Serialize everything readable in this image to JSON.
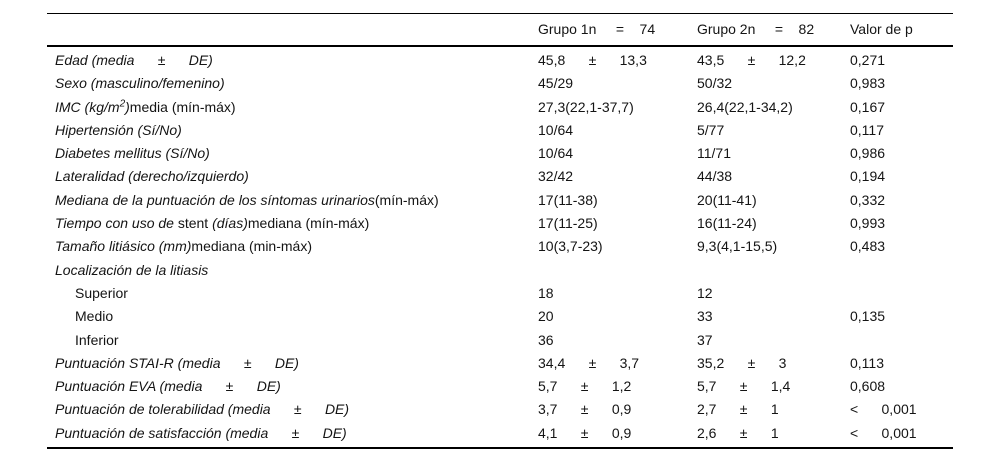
{
  "table": {
    "header": {
      "variable": "",
      "group1": "Grupo 1n     =    74",
      "group2": "Grupo 2n     =    82",
      "p": "Valor de p"
    },
    "rows": [
      {
        "s1": "Edad (media      ±      DE)",
        "g1": "45,8      ±      13,3",
        "g2": "43,5      ±      12,2",
        "p": "0,271"
      },
      {
        "s1": "Sexo (masculino/femenino)",
        "g1": "45/29",
        "g2": "50/32",
        "p": "0,983"
      },
      {
        "s1": "IMC (kg/m",
        "sup": "2",
        "s3": ")",
        "s4": "media (mín-máx)",
        "g1": "27,3(22,1-37,7)",
        "g2": "26,4(22,1-34,2)",
        "p": "0,167"
      },
      {
        "s1": "Hipertensión (Sí/No)",
        "g1": "10/64",
        "g2": "5/77",
        "p": "0,117"
      },
      {
        "s1": "Diabetes mellitus (Sí/No)",
        "g1": "10/64",
        "g2": "11/71",
        "p": "0,986"
      },
      {
        "s1": "Lateralidad (derecho/izquierdo)",
        "g1": "32/42",
        "g2": "44/38",
        "p": "0,194"
      },
      {
        "s1": "Mediana de la puntuación de los síntomas urinarios",
        "s2": "(mín-máx)",
        "g1": "17(11-38)",
        "g2": "20(11-41)",
        "p": "0,332"
      },
      {
        "s1": "Tiempo con uso de ",
        "s2": "stent ",
        "s3": "(días)",
        "s4": "mediana (mín-máx)",
        "g1": "17(11-25)",
        "g2": "16(11-24)",
        "p": "0,993"
      },
      {
        "s1": "Tamaño litiásico (mm)",
        "s2": "mediana (min-máx)",
        "g1": "10(3,7-23)",
        "g2": "9,3(4,1-15,5)",
        "p": "0,483"
      },
      {
        "s1": "Localización de la litiasis",
        "g1": "",
        "g2": "",
        "p": ""
      },
      {
        "s2": "Superior",
        "g1": "18",
        "g2": "12",
        "p": ""
      },
      {
        "s2": "Medio",
        "g1": "20",
        "g2": "33",
        "p": "0,135"
      },
      {
        "s2": "Inferior",
        "g1": "36",
        "g2": "37",
        "p": ""
      },
      {
        "s1": "Puntuación STAI-R (media      ±      DE)",
        "g1": "34,4      ±      3,7",
        "g2": "35,2      ±      3",
        "p": "0,113"
      },
      {
        "s1": "Puntuación EVA (media      ±      DE)",
        "g1": "5,7      ±      1,2",
        "g2": "5,7      ±      1,4",
        "p": "0,608"
      },
      {
        "s1": "Puntuación de tolerabilidad (media      ±      DE)",
        "g1": "3,7      ±      0,9",
        "g2": "2,7      ±      1",
        "p": "<      0,001"
      },
      {
        "s1": "Puntuación de satisfacción (media      ±      DE)",
        "g1": "4,1      ±      0,9",
        "g2": "2,6      ±      1",
        "p": "<      0,001"
      }
    ]
  }
}
